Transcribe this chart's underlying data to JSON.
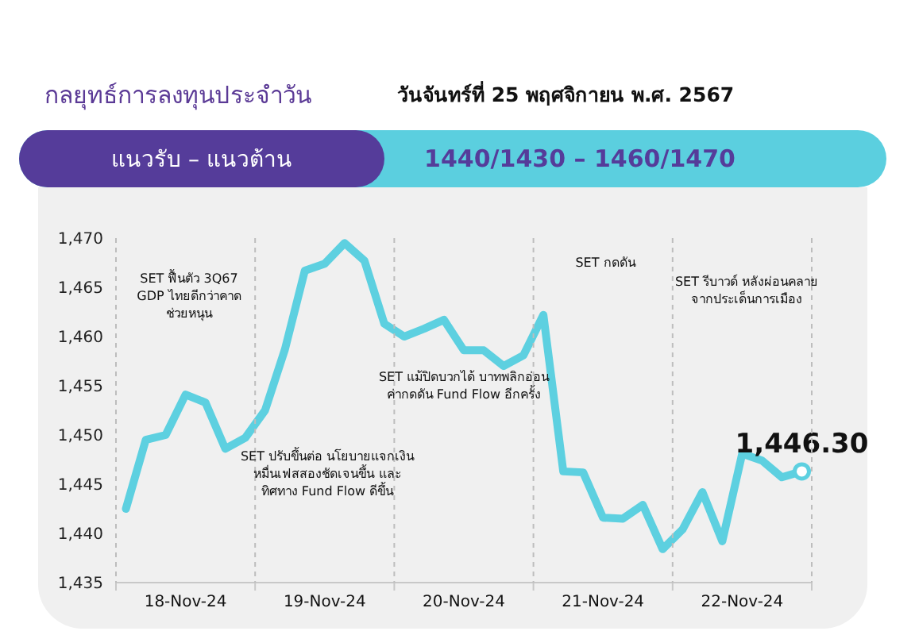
{
  "chart_data": {
    "type": "line",
    "title": "กลยุทธ์การลงทุนประจำวัน",
    "subtitle": "วันจันทร์ที่ 25 พฤศจิกายน พ.ศ. 2567",
    "annotations": [
      "แนวรับ – แนวต้าน",
      "1440/1430 – 1460/1470",
      "SET ฟื้นตัว 3Q67 GDP ไทยดีกว่าคาด ช่วยหนุน",
      "SET ปรับขึ้นต่อ นโยบายแจกเงินหมื่นเฟสสองชัดเจนขึ้น และทิศทาง Fund Flow ดีขึ้น",
      "SET แม้ปิดบวกได้ บาทพลิกอ่อนค่ากดดัน Fund Flow อีกครั้ง",
      "SET กดดัน",
      "SET รีบาวด์ หลังผ่อนคลายจากประเด็นการเมือง"
    ],
    "categories": [
      null,
      null,
      null,
      "18-Nov-24",
      null,
      null,
      null,
      null,
      null,
      null,
      "19-Nov-24",
      null,
      null,
      null,
      null,
      null,
      null,
      "20-Nov-24",
      null,
      null,
      null,
      null,
      null,
      null,
      "21-Nov-24",
      null,
      null,
      null,
      null,
      null,
      null,
      "22-Nov-24",
      null,
      null,
      null
    ],
    "series": [
      {
        "color": "#5dd0e0",
        "values": [
          1442.5,
          1449.5,
          1450,
          1454.1,
          1453.3,
          1448.6,
          1449.7,
          1452.5,
          1458.7,
          1466.7,
          1467.4,
          1469.5,
          1467.7,
          1461.3,
          1460,
          1460.8,
          1461.7,
          1458.6,
          1458.6,
          1457,
          1458.1,
          1462.2,
          1446.3,
          1446.2,
          1441.6,
          1441.5,
          1442.9,
          1438.4,
          1440.4,
          1444.2,
          1439.2,
          1448.1,
          1447.4,
          1445.7,
          1446.3
        ],
        "value_labels": [
          null,
          null,
          null,
          null,
          null,
          null,
          null,
          null,
          null,
          null,
          null,
          null,
          null,
          null,
          null,
          null,
          null,
          null,
          null,
          null,
          null,
          null,
          null,
          null,
          null,
          null,
          null,
          null,
          null,
          null,
          null,
          null,
          null,
          null,
          "1,446.30"
        ]
      }
    ],
    "ylim": [
      1435,
      1470
    ],
    "yticks": [
      {
        "value": 1435,
        "label": "1,435"
      },
      {
        "value": 1440,
        "label": "1,440"
      },
      {
        "value": 1445,
        "label": "1,445"
      },
      {
        "value": 1450,
        "label": "1,450"
      },
      {
        "value": 1455,
        "label": "1,455"
      },
      {
        "value": 1460,
        "label": "1,460"
      },
      {
        "value": 1465,
        "label": "1,465"
      },
      {
        "value": 1470,
        "label": "1,470"
      }
    ],
    "grid": "x",
    "legend": false,
    "marker": "none",
    "line_style": "solid"
  }
}
